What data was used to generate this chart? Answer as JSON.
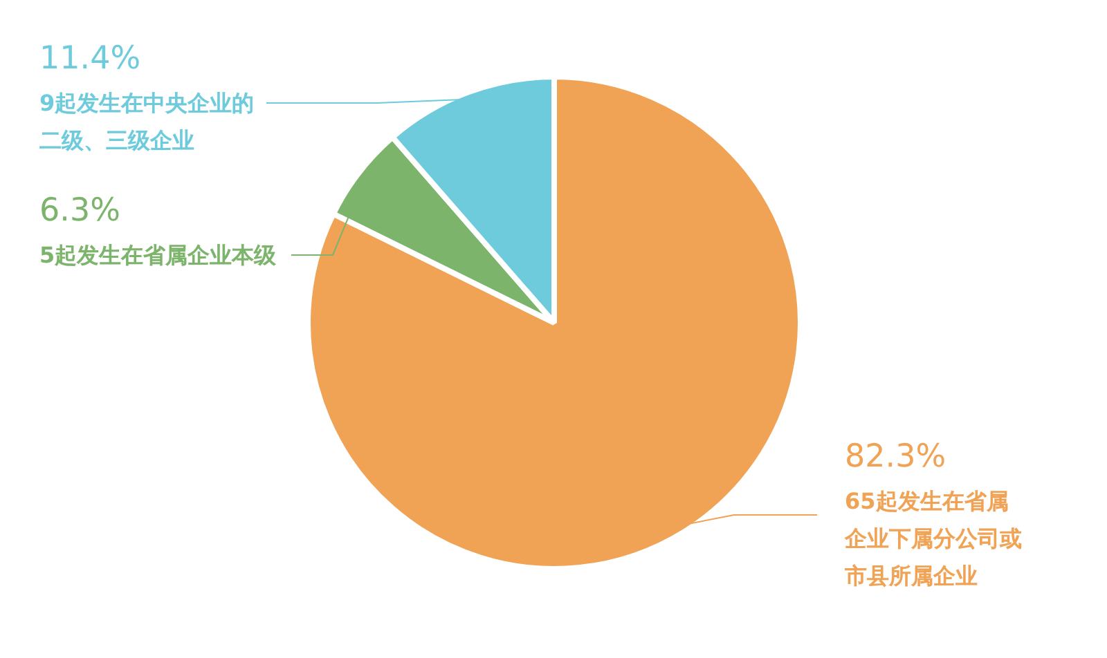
{
  "chart_data": {
    "type": "pie",
    "categories": [
      "65起发生在省属企业下属分公司或市县所属企业",
      "5起发生在省属企业本级",
      "9起发生在中央企业的二级、三级企业"
    ],
    "values": [
      82.3,
      6.3,
      11.4
    ],
    "colors": [
      "#f0a255",
      "#7db46c",
      "#6ecbdc"
    ],
    "value_labels": [
      "82.3%",
      "6.3%",
      "11.4%"
    ]
  }
}
